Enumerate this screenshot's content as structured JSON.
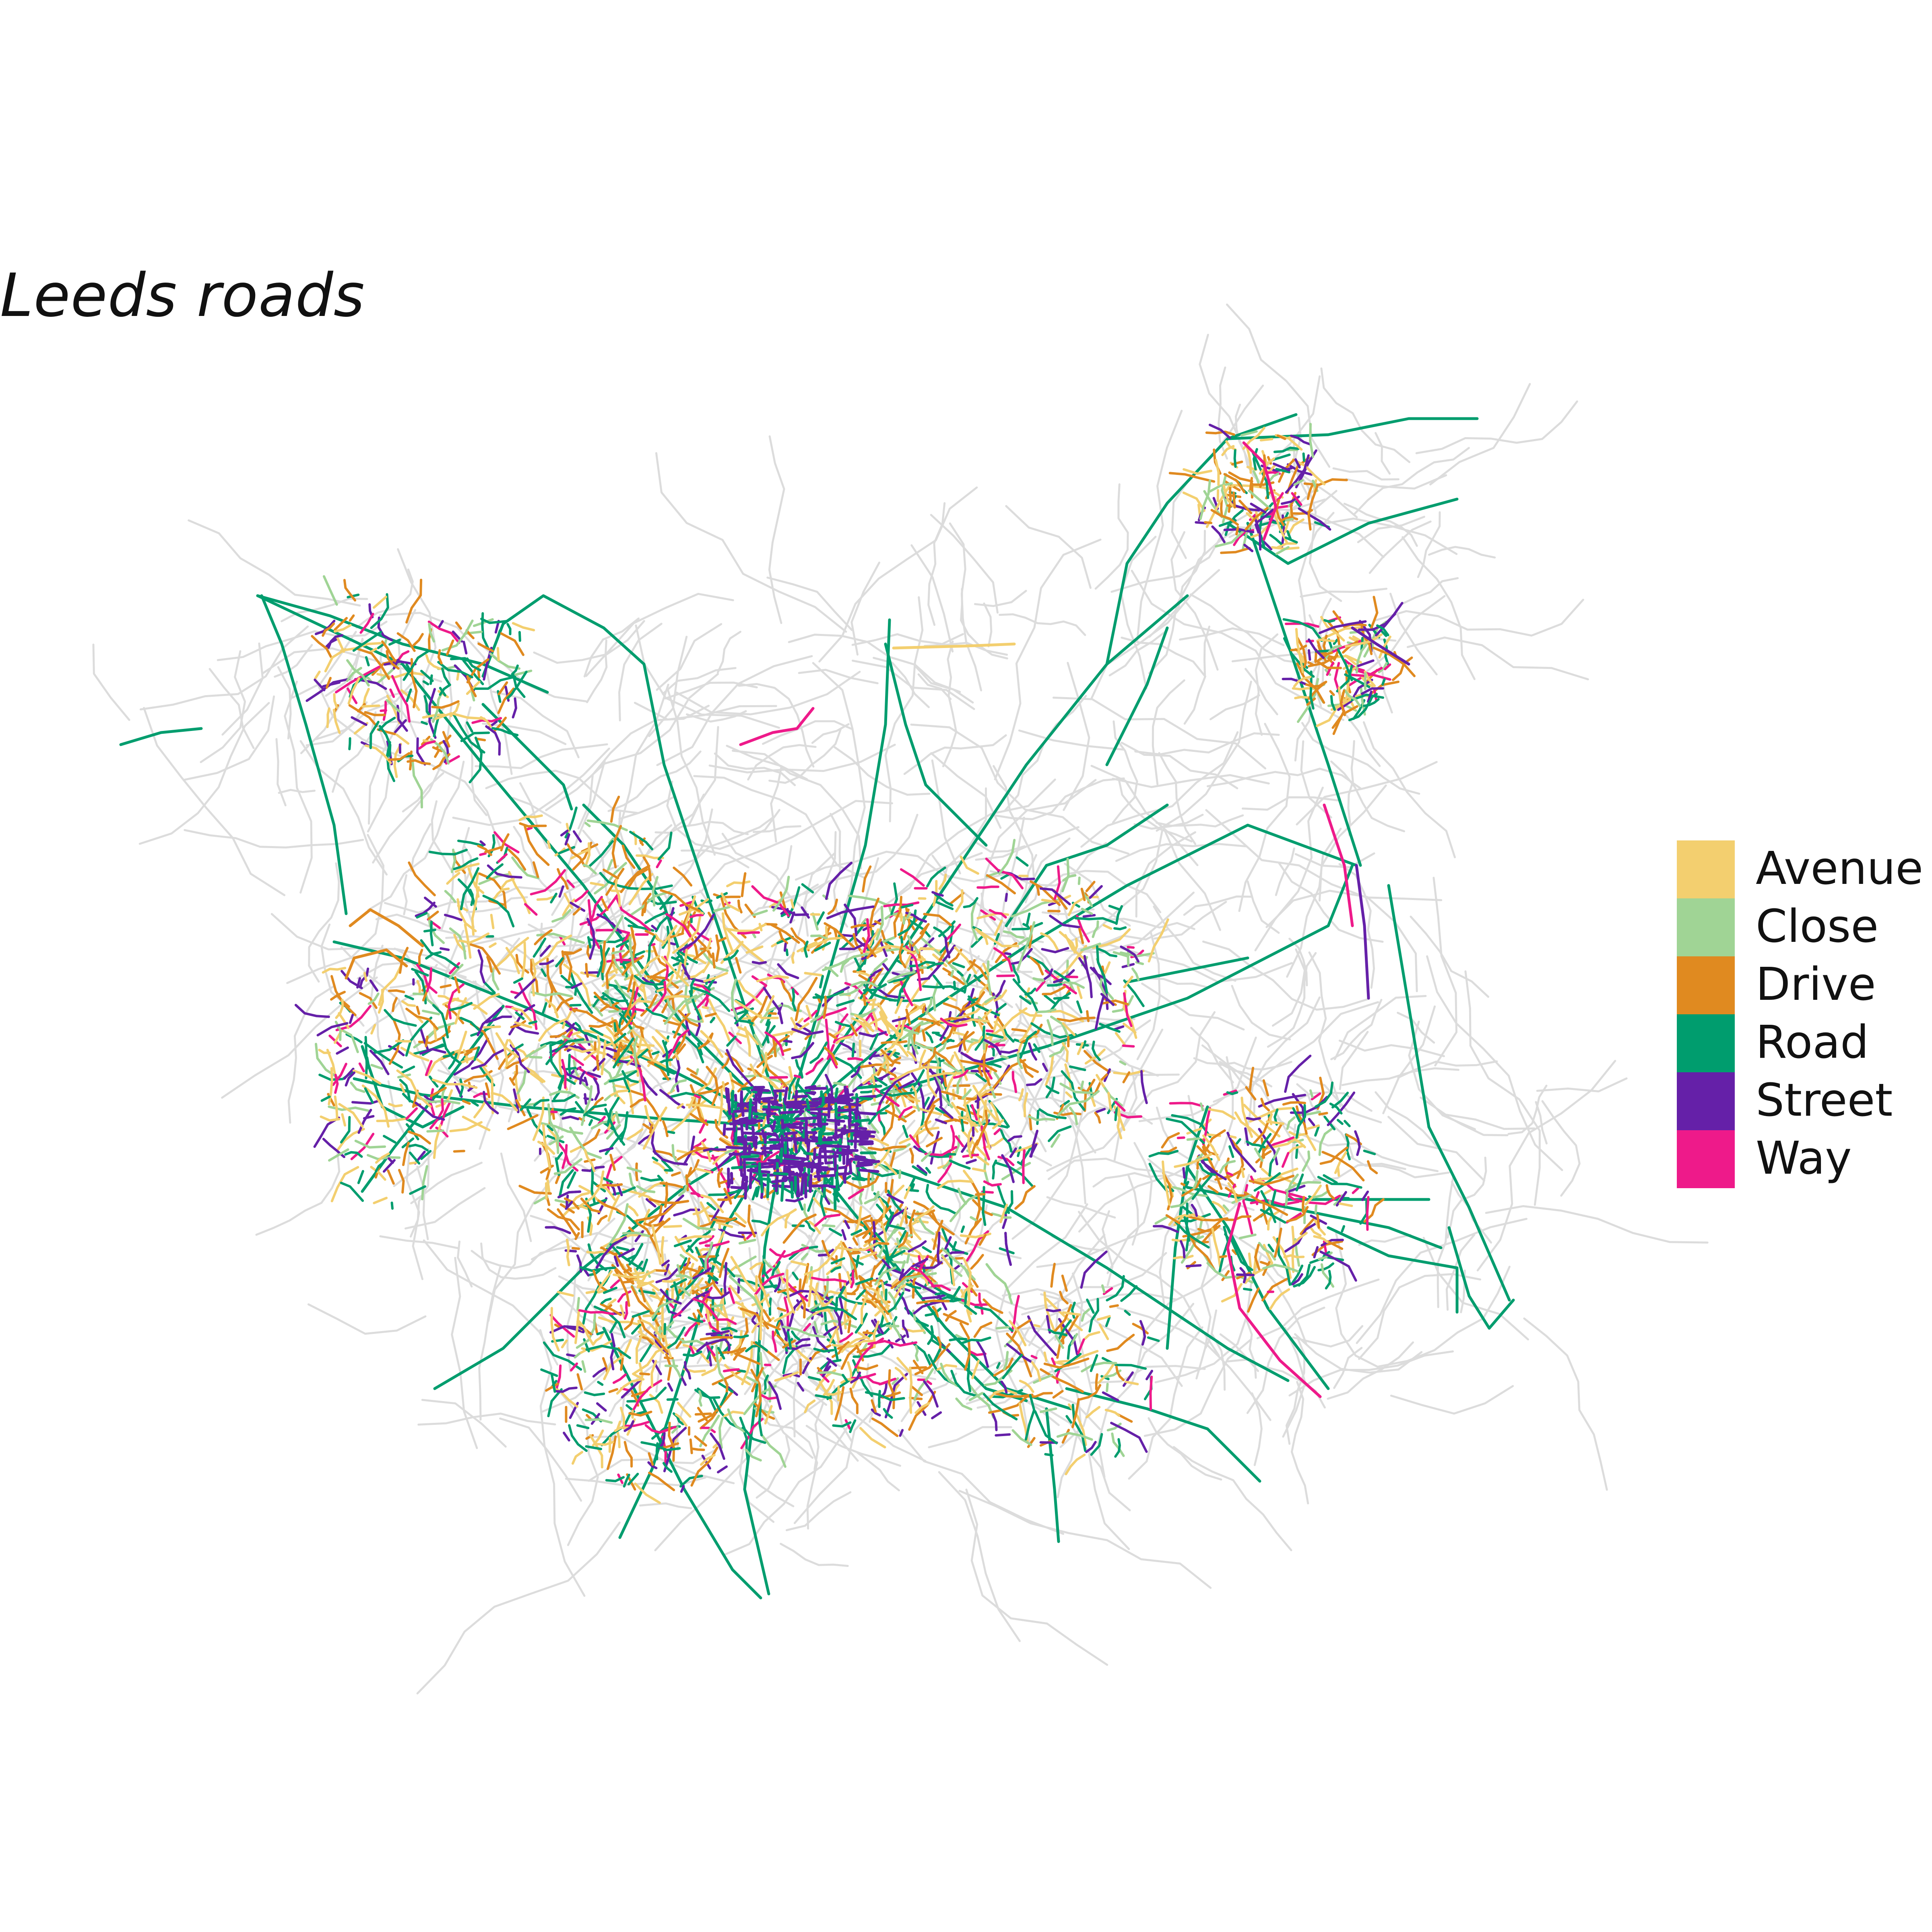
{
  "map": {
    "title": "Leeds roads"
  },
  "legend": {
    "items": [
      {
        "label": "Avenue",
        "color": "#f3cf6f"
      },
      {
        "label": "Close",
        "color": "#a0d495"
      },
      {
        "label": "Drive",
        "color": "#e08a20"
      },
      {
        "label": "Road",
        "color": "#009d6e"
      },
      {
        "label": "Street",
        "color": "#6520a8"
      },
      {
        "label": "Way",
        "color": "#ee1a8a"
      }
    ]
  },
  "colors": {
    "background": "#ffffff",
    "other_roads": "#dcdcdc"
  }
}
